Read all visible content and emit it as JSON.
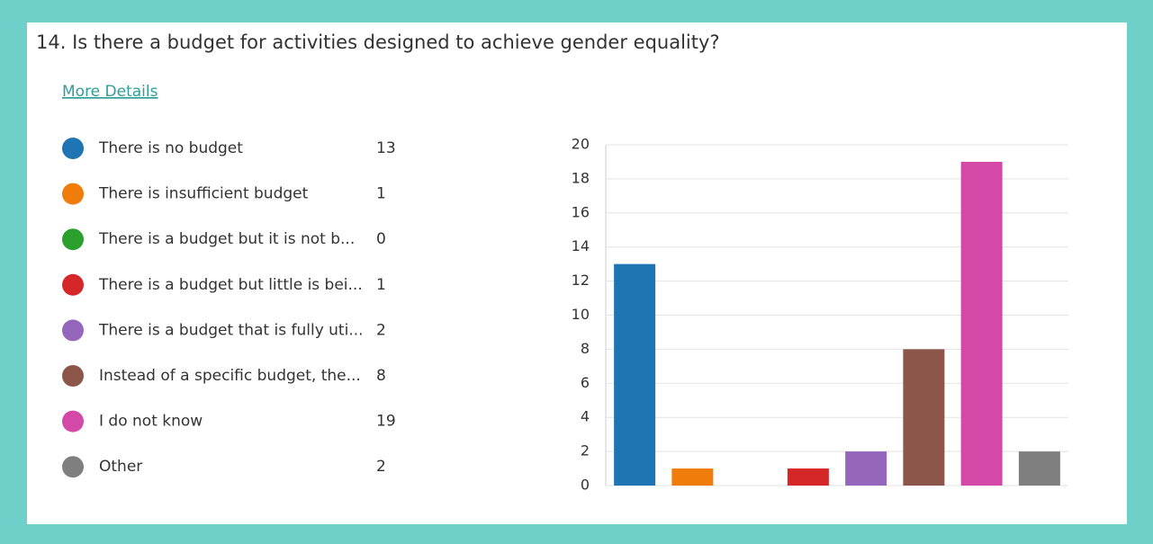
{
  "chart_data": {
    "type": "bar",
    "title": "14.  Is there a budget for activities designed to achieve gender equality?",
    "link": "More Details",
    "categories": [
      "There is no budget",
      "There is insufficient budget",
      "There is a budget but it is not b...",
      "There is a budget but little is bei...",
      "There is a budget that is fully uti...",
      "Instead of a specific budget, the...",
      "I do not know",
      "Other"
    ],
    "values": [
      13,
      1,
      0,
      1,
      2,
      8,
      19,
      2
    ],
    "colors": [
      "#1f74b4",
      "#f07c0c",
      "#2ca02c",
      "#d62728",
      "#9467bd",
      "#8c564b",
      "#d448a8",
      "#7f7f7f"
    ],
    "ylim": [
      0,
      20
    ],
    "yticks": [
      0,
      2,
      4,
      6,
      8,
      10,
      12,
      14,
      16,
      18,
      20
    ],
    "grid": true,
    "legend": "left"
  }
}
